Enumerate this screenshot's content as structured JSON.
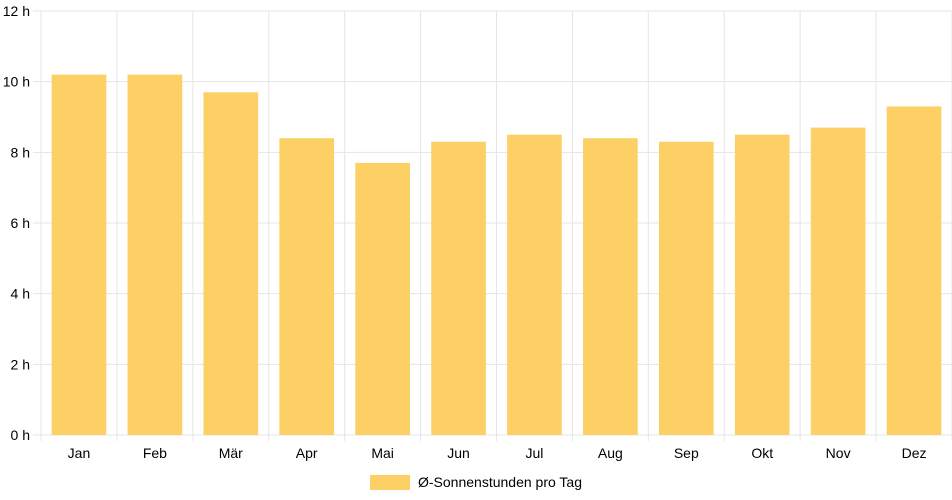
{
  "chart_data": {
    "type": "bar",
    "categories": [
      "Jan",
      "Feb",
      "Mär",
      "Apr",
      "Mai",
      "Jun",
      "Jul",
      "Aug",
      "Sep",
      "Okt",
      "Nov",
      "Dez"
    ],
    "series": [
      {
        "name": "Ø-Sonnenstunden pro Tag",
        "values": [
          10.2,
          10.2,
          9.7,
          8.4,
          7.7,
          8.3,
          8.5,
          8.4,
          8.3,
          8.5,
          8.7,
          9.3
        ],
        "color": "#fdd066"
      }
    ],
    "ylim": [
      0,
      12
    ],
    "yticks": [
      0,
      2,
      4,
      6,
      8,
      10,
      12
    ],
    "ytick_labels": [
      "0 h",
      "2 h",
      "4 h",
      "6 h",
      "8 h",
      "10 h",
      "12 h"
    ],
    "grid": true,
    "legend_position": "bottom",
    "title": "",
    "xlabel": "",
    "ylabel": ""
  }
}
